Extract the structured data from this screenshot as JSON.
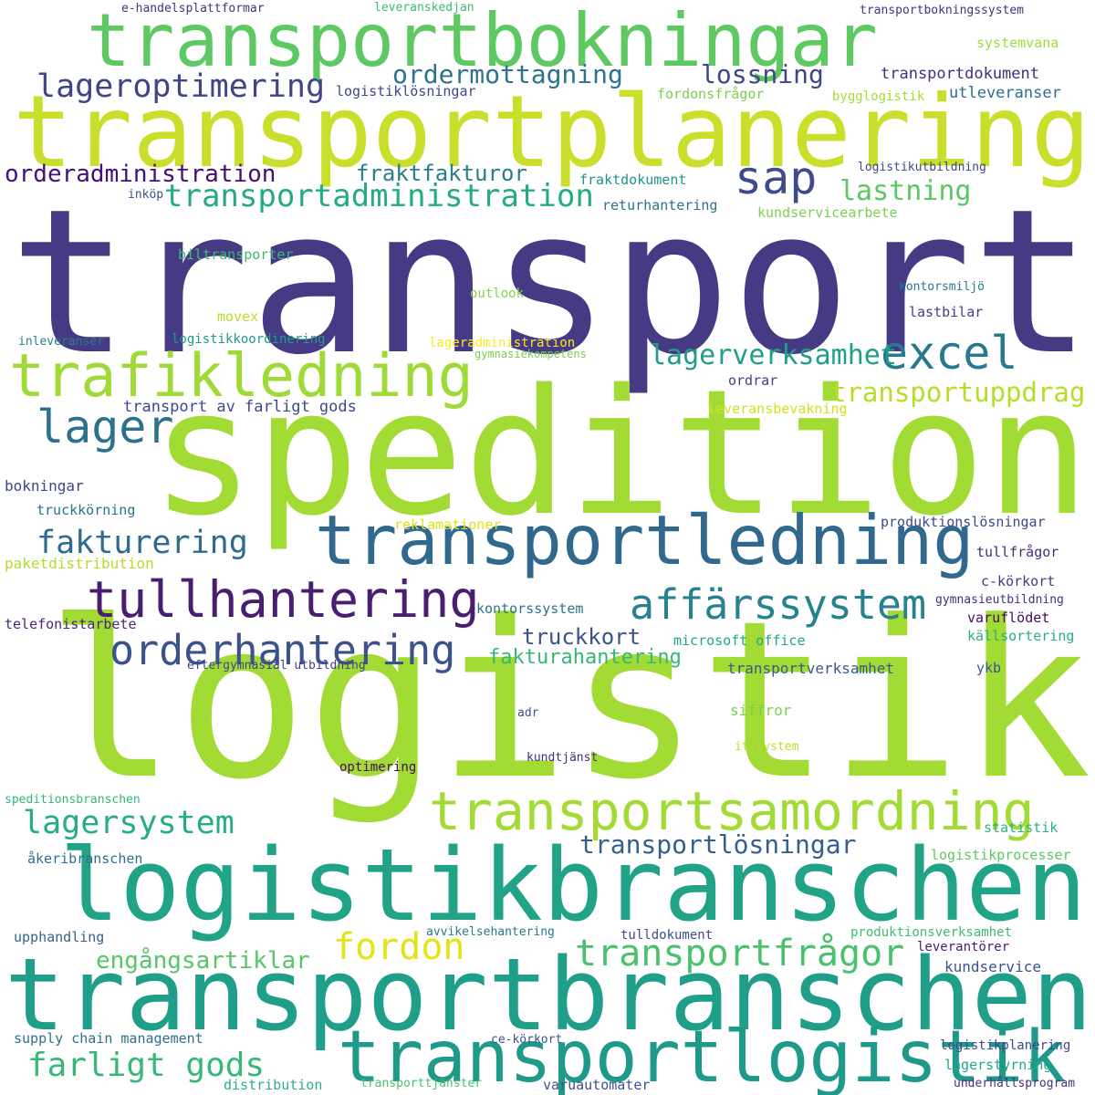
{
  "words": [
    {
      "text": "transport",
      "color": "#453a83"
    },
    {
      "text": "spedition",
      "color": "#a2db34"
    },
    {
      "text": "logistik",
      "color": "#a2db34"
    },
    {
      "text": "transportplanering",
      "color": "#c9df2b"
    },
    {
      "text": "transportbokningar",
      "color": "#5ec962"
    },
    {
      "text": "logistikbranschen",
      "color": "#20a386"
    },
    {
      "text": "transportbranschen",
      "color": "#1f9e89"
    },
    {
      "text": "transportledning",
      "color": "#31688e"
    },
    {
      "text": "trafikledning",
      "color": "#a0da39"
    },
    {
      "text": "transportlogistik",
      "color": "#1f9a8a"
    },
    {
      "text": "transportsamordning",
      "color": "#a2db34"
    },
    {
      "text": "tullhantering",
      "color": "#481f70"
    },
    {
      "text": "affärssystem",
      "color": "#26828e"
    },
    {
      "text": "orderhantering",
      "color": "#3b528b"
    },
    {
      "text": "excel",
      "color": "#2a788e"
    },
    {
      "text": "lager",
      "color": "#2c728e"
    },
    {
      "text": "sap",
      "color": "#3e4a89"
    },
    {
      "text": "lageroptimering",
      "color": "#414487"
    },
    {
      "text": "transportadministration",
      "color": "#25ab82"
    },
    {
      "text": "ordermottagning",
      "color": "#2c738e"
    },
    {
      "text": "lossning",
      "color": "#3f4788"
    },
    {
      "text": "orderadministration",
      "color": "#440f76"
    },
    {
      "text": "fraktfakturor",
      "color": "#287d8e"
    },
    {
      "text": "lastning",
      "color": "#5cc863"
    },
    {
      "text": "fakturering",
      "color": "#2f6b8e"
    },
    {
      "text": "lagerverksamhet",
      "color": "#1f9f88"
    },
    {
      "text": "transportuppdrag",
      "color": "#b5de2b"
    },
    {
      "text": "lagersystem",
      "color": "#27ad81"
    },
    {
      "text": "transportlösningar",
      "color": "#355f8d"
    },
    {
      "text": "transportfrågor",
      "color": "#4ac16d"
    },
    {
      "text": "fordon",
      "color": "#e2e418"
    },
    {
      "text": "engångsartiklar",
      "color": "#56c667"
    },
    {
      "text": "farligt gods",
      "color": "#37b878"
    },
    {
      "text": "truckkort",
      "color": "#3b528b"
    },
    {
      "text": "fakturahantering",
      "color": "#35b779"
    },
    {
      "text": "transportdokument",
      "color": "#472d7b"
    },
    {
      "text": "logistiklösningar",
      "color": "#404688"
    },
    {
      "text": "fordonsfrågor",
      "color": "#7ad151"
    },
    {
      "text": "bygglogistik",
      "color": "#a5db36"
    },
    {
      "text": "utleveranser",
      "color": "#2e6e8e"
    },
    {
      "text": "systemvana",
      "color": "#9fda3a"
    },
    {
      "text": "e-handelsplattformar",
      "color": "#46327e"
    },
    {
      "text": "leveranskedjan",
      "color": "#3dbc74"
    },
    {
      "text": "transportbokningssystem",
      "color": "#46337e"
    },
    {
      "text": "fraktdokument",
      "color": "#1f958b"
    },
    {
      "text": "logistikutbildning",
      "color": "#3f4889"
    },
    {
      "text": "inköp",
      "color": "#39558c"
    },
    {
      "text": "returhantering",
      "color": "#2c738e"
    },
    {
      "text": "kundservicearbete",
      "color": "#7ad151"
    },
    {
      "text": "biltransporter",
      "color": "#3aba76"
    },
    {
      "text": "kontorsmiljö",
      "color": "#2a788e"
    },
    {
      "text": "outlook",
      "color": "#84d44b"
    },
    {
      "text": "movex",
      "color": "#b5de2b"
    },
    {
      "text": "lastbilar",
      "color": "#424086"
    },
    {
      "text": "inleveranser",
      "color": "#277f8e"
    },
    {
      "text": "logistikkoordinering",
      "color": "#1e9b8a"
    },
    {
      "text": "lageradministration",
      "color": "#fde725"
    },
    {
      "text": "gymnasiekompetens",
      "color": "#75d054"
    },
    {
      "text": "ordrar",
      "color": "#404387"
    },
    {
      "text": "transport av farligt gods",
      "color": "#3e4989"
    },
    {
      "text": "leveransbevakning",
      "color": "#d2e21b"
    },
    {
      "text": "bokningar",
      "color": "#3f4788"
    },
    {
      "text": "truckkörning",
      "color": "#2d708e"
    },
    {
      "text": "reklamationer",
      "color": "#dfe318"
    },
    {
      "text": "produktionslösningar",
      "color": "#3e4a89"
    },
    {
      "text": "paketdistribution",
      "color": "#b2dd2d"
    },
    {
      "text": "tullfrågor",
      "color": "#472c7a"
    },
    {
      "text": "c-körkort",
      "color": "#443983"
    },
    {
      "text": "kontorssystem",
      "color": "#2c738e"
    },
    {
      "text": "gymnasieutbildning",
      "color": "#46307e"
    },
    {
      "text": "telefonistarbete",
      "color": "#482878"
    },
    {
      "text": "varuflödet",
      "color": "#460b5e"
    },
    {
      "text": "microsoft office",
      "color": "#22a785"
    },
    {
      "text": "källsortering",
      "color": "#29af7f"
    },
    {
      "text": "eftergymnasial utbildning",
      "color": "#414287"
    },
    {
      "text": "transportverksamhet",
      "color": "#38598c"
    },
    {
      "text": "ykb",
      "color": "#38588c"
    },
    {
      "text": "adr",
      "color": "#3b528b"
    },
    {
      "text": "siffror",
      "color": "#7ad151"
    },
    {
      "text": "it-system",
      "color": "#bddf26"
    },
    {
      "text": "kundtjänst",
      "color": "#472d7b"
    },
    {
      "text": "optimering",
      "color": "#460b5e"
    },
    {
      "text": "speditionsbranschen",
      "color": "#35b779"
    },
    {
      "text": "statistik",
      "color": "#2db27d"
    },
    {
      "text": "åkeribranschen",
      "color": "#2e6e8e"
    },
    {
      "text": "logistikprocesser",
      "color": "#5ec962"
    },
    {
      "text": "upphandling",
      "color": "#33638d"
    },
    {
      "text": "avvikelsehantering",
      "color": "#2a788e"
    },
    {
      "text": "tulldokument",
      "color": "#3e4c8a"
    },
    {
      "text": "produktionsverksamhet",
      "color": "#3dbc74"
    },
    {
      "text": "leverantörer",
      "color": "#481d6f"
    },
    {
      "text": "kundservice",
      "color": "#3a548c"
    },
    {
      "text": "supply chain management",
      "color": "#2d708e"
    },
    {
      "text": "ce-körkort",
      "color": "#3b528b"
    },
    {
      "text": "logistikplanering",
      "color": "#3f4889"
    },
    {
      "text": "lagerstyrning",
      "color": "#22a884"
    },
    {
      "text": "distribution",
      "color": "#2db27d"
    },
    {
      "text": "transporttjänster",
      "color": "#4ac16d"
    },
    {
      "text": "varuautomater",
      "color": "#3b528b"
    },
    {
      "text": "underhållsprogram",
      "color": "#46327e"
    }
  ]
}
